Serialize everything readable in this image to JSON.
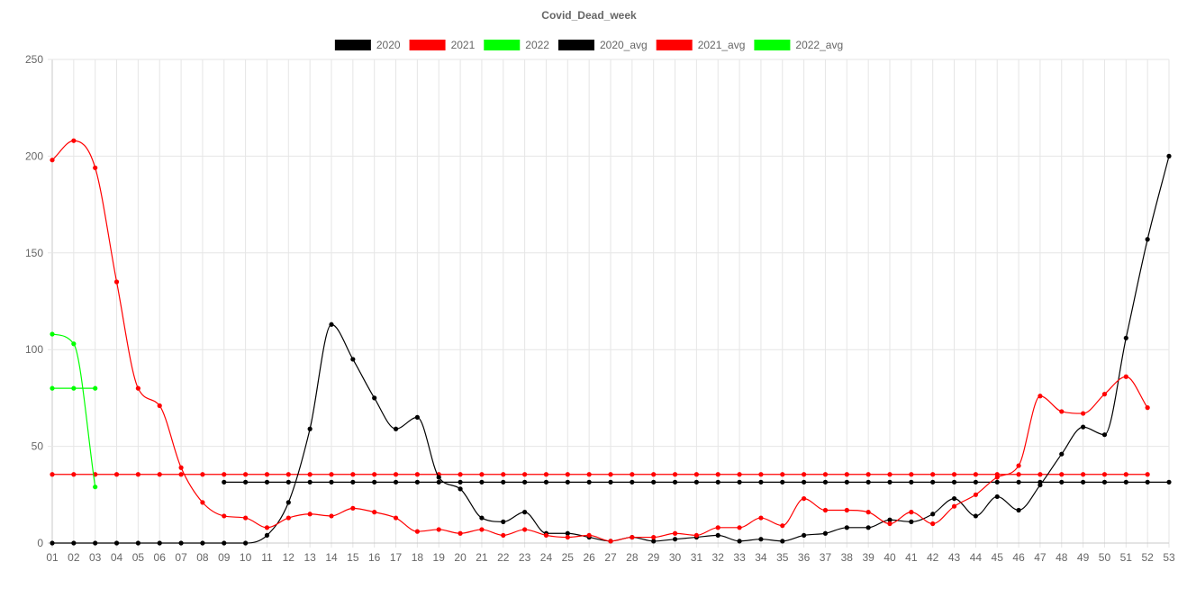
{
  "chart_data": {
    "type": "line",
    "title": "Covid_Dead_week",
    "legend_position": "top",
    "grid": true,
    "ylim": [
      0,
      250
    ],
    "y_ticks": [
      0,
      50,
      100,
      150,
      200,
      250
    ],
    "categories": [
      "01",
      "02",
      "03",
      "04",
      "05",
      "06",
      "07",
      "08",
      "09",
      "10",
      "11",
      "12",
      "13",
      "14",
      "15",
      "16",
      "17",
      "18",
      "19",
      "20",
      "21",
      "22",
      "23",
      "24",
      "25",
      "26",
      "27",
      "28",
      "29",
      "30",
      "31",
      "32",
      "33",
      "34",
      "35",
      "36",
      "37",
      "38",
      "39",
      "40",
      "41",
      "42",
      "43",
      "44",
      "45",
      "46",
      "47",
      "48",
      "49",
      "50",
      "51",
      "52",
      "53"
    ],
    "series": [
      {
        "name": "2020",
        "color": "#000000",
        "values": [
          0,
          0,
          0,
          0,
          0,
          0,
          0,
          0,
          0,
          0,
          4,
          21,
          59,
          113,
          95,
          75,
          59,
          65,
          34,
          28,
          13,
          11,
          16,
          5,
          5,
          3,
          1,
          3,
          1,
          2,
          3,
          4,
          1,
          2,
          1,
          4,
          5,
          8,
          8,
          12,
          11,
          15,
          23,
          14,
          24,
          17,
          30,
          46,
          60,
          56,
          106,
          157,
          200
        ]
      },
      {
        "name": "2021",
        "color": "#ff0000",
        "values": [
          198,
          208,
          194,
          135,
          80,
          71,
          39,
          21,
          14,
          13,
          8,
          13,
          15,
          14,
          18,
          16,
          13,
          6,
          7,
          5,
          7,
          4,
          7,
          4,
          3,
          4,
          1,
          3,
          3,
          5,
          4,
          8,
          8,
          13,
          9,
          23,
          17,
          17,
          16,
          10,
          16,
          10,
          19,
          25,
          34,
          40,
          76,
          68,
          67,
          77,
          86,
          70,
          null
        ]
      },
      {
        "name": "2022",
        "color": "#00ff00",
        "values": [
          108,
          103,
          29,
          null,
          null,
          null,
          null,
          null,
          null,
          null,
          null,
          null,
          null,
          null,
          null,
          null,
          null,
          null,
          null,
          null,
          null,
          null,
          null,
          null,
          null,
          null,
          null,
          null,
          null,
          null,
          null,
          null,
          null,
          null,
          null,
          null,
          null,
          null,
          null,
          null,
          null,
          null,
          null,
          null,
          null,
          null,
          null,
          null,
          null,
          null,
          null,
          null,
          null
        ]
      },
      {
        "name": "2020_avg",
        "color": "#000000",
        "values": [
          null,
          null,
          null,
          null,
          null,
          null,
          null,
          null,
          31.5,
          31.5,
          31.5,
          31.5,
          31.5,
          31.5,
          31.5,
          31.5,
          31.5,
          31.5,
          31.5,
          31.5,
          31.5,
          31.5,
          31.5,
          31.5,
          31.5,
          31.5,
          31.5,
          31.5,
          31.5,
          31.5,
          31.5,
          31.5,
          31.5,
          31.5,
          31.5,
          31.5,
          31.5,
          31.5,
          31.5,
          31.5,
          31.5,
          31.5,
          31.5,
          31.5,
          31.5,
          31.5,
          31.5,
          31.5,
          31.5,
          31.5,
          31.5,
          31.5,
          31.5
        ]
      },
      {
        "name": "2021_avg",
        "color": "#ff0000",
        "values": [
          35.5,
          35.5,
          35.5,
          35.5,
          35.5,
          35.5,
          35.5,
          35.5,
          35.5,
          35.5,
          35.5,
          35.5,
          35.5,
          35.5,
          35.5,
          35.5,
          35.5,
          35.5,
          35.5,
          35.5,
          35.5,
          35.5,
          35.5,
          35.5,
          35.5,
          35.5,
          35.5,
          35.5,
          35.5,
          35.5,
          35.5,
          35.5,
          35.5,
          35.5,
          35.5,
          35.5,
          35.5,
          35.5,
          35.5,
          35.5,
          35.5,
          35.5,
          35.5,
          35.5,
          35.5,
          35.5,
          35.5,
          35.5,
          35.5,
          35.5,
          35.5,
          35.5,
          null
        ]
      },
      {
        "name": "2022_avg",
        "color": "#00ff00",
        "values": [
          80,
          80,
          80,
          null,
          null,
          null,
          null,
          null,
          null,
          null,
          null,
          null,
          null,
          null,
          null,
          null,
          null,
          null,
          null,
          null,
          null,
          null,
          null,
          null,
          null,
          null,
          null,
          null,
          null,
          null,
          null,
          null,
          null,
          null,
          null,
          null,
          null,
          null,
          null,
          null,
          null,
          null,
          null,
          null,
          null,
          null,
          null,
          null,
          null,
          null,
          null,
          null,
          null
        ]
      }
    ]
  }
}
